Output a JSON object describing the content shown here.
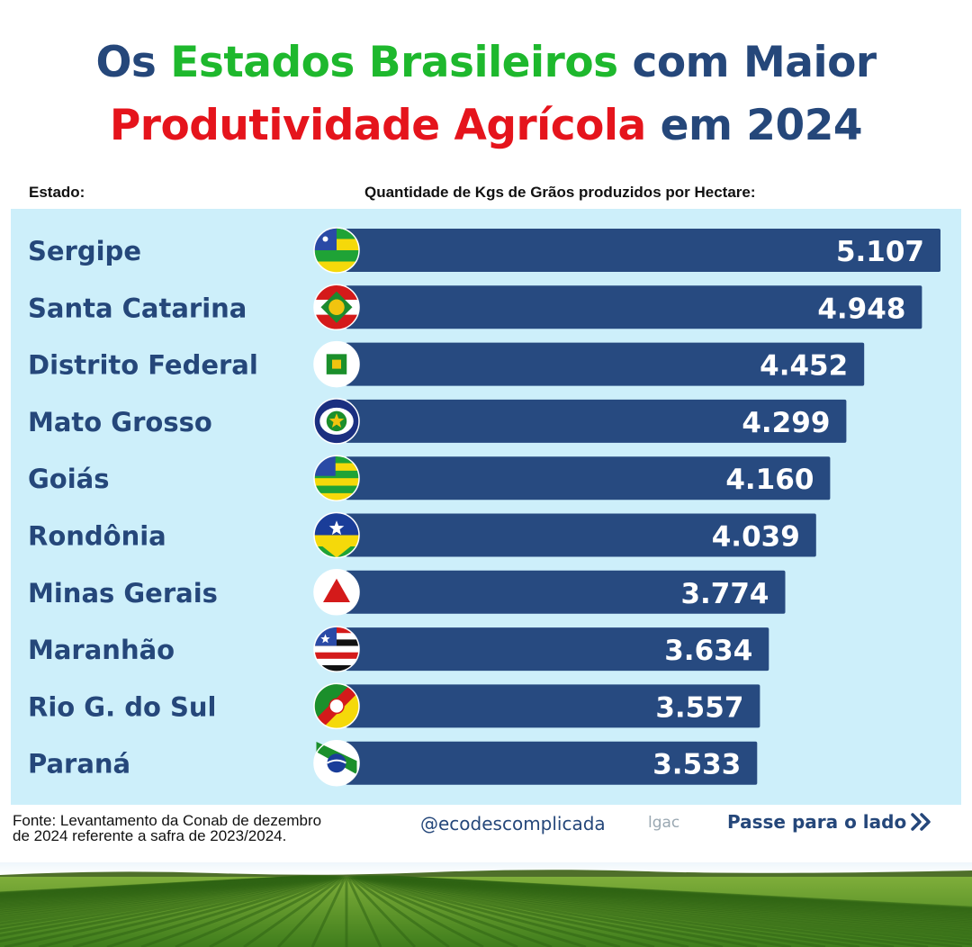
{
  "title": {
    "line1_part1": "Os ",
    "line1_part2": "Estados Brasileiros",
    "line1_part3": " com Maior",
    "line2_part1": "Produtividade Agrícola",
    "line2_part2": " em 2024"
  },
  "headers": {
    "estado": "Estado:",
    "quantidade": "Quantidade de Kgs de Grãos produzidos por Hectare:"
  },
  "colors": {
    "bar": "#274a80",
    "panel": "#cdeffa",
    "label": "#25477a",
    "title_green": "#1eb82d",
    "title_red": "#e5141c"
  },
  "chart_data": {
    "type": "bar",
    "orientation": "horizontal",
    "categories": [
      "Sergipe",
      "Santa Catarina",
      "Distrito Federal",
      "Mato Grosso",
      "Goiás",
      "Rondônia",
      "Minas Gerais",
      "Maranhão",
      "Rio G. do Sul",
      "Paraná"
    ],
    "values": [
      5107,
      4948,
      4452,
      4299,
      4160,
      4039,
      3774,
      3634,
      3557,
      3533
    ],
    "value_labels": [
      "5.107",
      "4.948",
      "4.452",
      "4.299",
      "4.160",
      "4.039",
      "3.774",
      "3.634",
      "3.557",
      "3.533"
    ],
    "flags": [
      "sergipe-flag-icon",
      "santa-catarina-flag-icon",
      "distrito-federal-flag-icon",
      "mato-grosso-flag-icon",
      "goias-flag-icon",
      "rondonia-flag-icon",
      "minas-gerais-flag-icon",
      "maranhao-flag-icon",
      "rio-grande-do-sul-flag-icon",
      "parana-flag-icon"
    ],
    "xlabel": "",
    "ylabel": ""
  },
  "footer": {
    "source_line1": "Fonte: Levantamento da Conab de dezembro",
    "source_line2": "de 2024 referente a safra de 2023/2024.",
    "handle": "@ecodescomplicada",
    "logo": "lgac",
    "next": "Passe para o lado"
  }
}
